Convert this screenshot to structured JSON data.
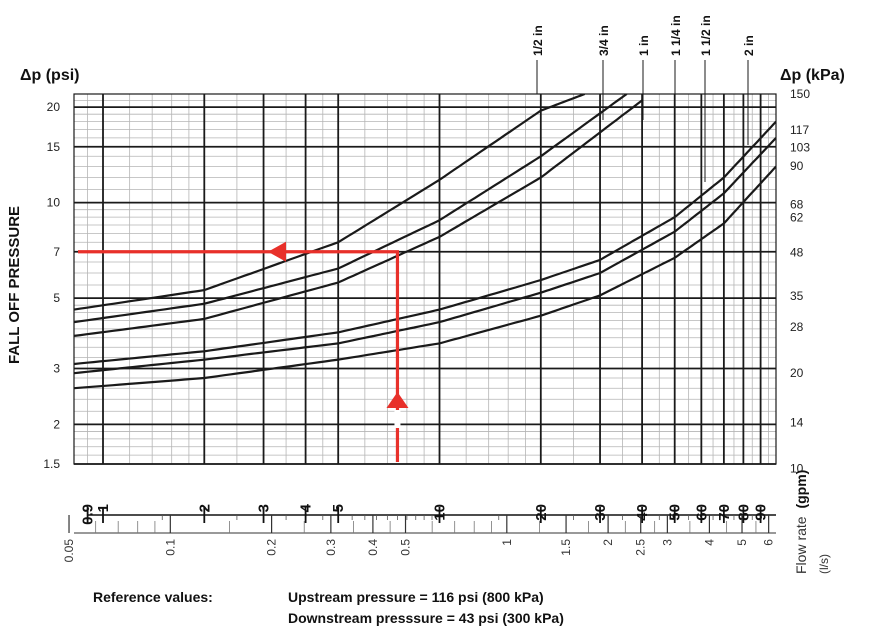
{
  "chart_data": {
    "type": "line",
    "title": "",
    "x_scale": "log",
    "y_scale": "log",
    "y_left": {
      "label": "FALL OFF PRESSURE",
      "unit_label": "Δp (psi)",
      "range": [
        1.5,
        22
      ],
      "tick_labels": [
        "1.5",
        "2",
        "3",
        "5",
        "7",
        "10",
        "15",
        "20"
      ],
      "tick_values": [
        1.5,
        2,
        3,
        5,
        7,
        10,
        15,
        20
      ]
    },
    "y_right": {
      "unit_label": "Δp (kPa)",
      "tick_labels": [
        "10",
        "14",
        "20",
        "28",
        "35",
        "48",
        "62",
        "68",
        "90",
        "103",
        "117",
        "150"
      ],
      "tick_values": [
        10,
        14,
        20,
        28,
        35,
        48,
        62,
        68,
        90,
        103,
        117,
        150
      ]
    },
    "x_gpm": {
      "label": "Flow rate (gpm)",
      "label_text": "Flow rate",
      "label_unit": "(gpm)",
      "range": [
        0.82,
        100
      ],
      "tick_labels": [
        "0.9",
        "1",
        "2",
        "3",
        "4",
        "5",
        "10",
        "20",
        "30",
        "40",
        "50",
        "60",
        "70",
        "80",
        "90"
      ],
      "tick_values": [
        0.9,
        1,
        2,
        3,
        4,
        5,
        10,
        20,
        30,
        40,
        50,
        60,
        70,
        80,
        90
      ]
    },
    "x_ls": {
      "label": "(l/s)",
      "tick_labels": [
        "0.05",
        "0.1",
        "0.2",
        "0.3",
        "0.4",
        "0.5",
        "1",
        "1.5",
        "2",
        "2.5",
        "3",
        "4",
        "5",
        "6"
      ],
      "tick_values": [
        0.05,
        0.1,
        0.2,
        0.3,
        0.4,
        0.5,
        1,
        1.5,
        2,
        2.5,
        3,
        4,
        5,
        6
      ]
    },
    "grid": true,
    "series": [
      {
        "name": "1/2 in",
        "x": [
          0.82,
          2,
          5,
          10,
          20,
          27
        ],
        "y": [
          4.6,
          5.3,
          7.5,
          11.8,
          19.5,
          22
        ]
      },
      {
        "name": "3/4 in",
        "x": [
          0.82,
          2,
          5,
          10,
          20,
          36
        ],
        "y": [
          4.2,
          4.8,
          6.2,
          8.8,
          14,
          22
        ]
      },
      {
        "name": "1 in",
        "x": [
          0.82,
          2,
          5,
          10,
          20,
          40
        ],
        "y": [
          3.8,
          4.3,
          5.6,
          7.8,
          12,
          21
        ]
      },
      {
        "name": "1 1/4 in",
        "x": [
          0.82,
          2,
          5,
          10,
          20,
          30,
          50,
          70,
          100
        ],
        "y": [
          3.1,
          3.4,
          3.9,
          4.6,
          5.7,
          6.6,
          9,
          12,
          18
        ]
      },
      {
        "name": "1 1/2 in",
        "x": [
          0.82,
          2,
          5,
          10,
          20,
          30,
          50,
          70,
          100
        ],
        "y": [
          2.9,
          3.2,
          3.6,
          4.2,
          5.2,
          6,
          8.1,
          10.7,
          16
        ]
      },
      {
        "name": "2 in",
        "x": [
          0.82,
          2,
          5,
          10,
          20,
          30,
          50,
          70,
          100
        ],
        "y": [
          2.6,
          2.8,
          3.2,
          3.6,
          4.4,
          5.1,
          6.7,
          8.6,
          13
        ]
      }
    ],
    "annotation": {
      "description": "example reading",
      "flow_gpm": 7.5,
      "pressure_psi": 7
    }
  },
  "footer": {
    "reference_label": "Reference values:",
    "upstream": "Upstream pressure = 116 psi (800 kPa)",
    "downstream": "Downstream presssure = 43 psi (300 kPa)"
  },
  "colors": {
    "curve": "#1a1a1a",
    "grid_major": "#1a1a1a",
    "grid_minor": "#b5b5b5",
    "annotation": "#e8302a"
  }
}
